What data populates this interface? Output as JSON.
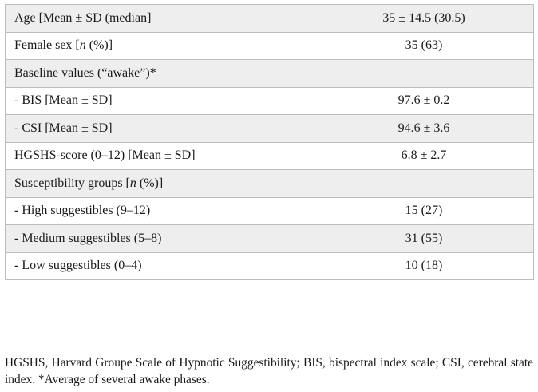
{
  "rows": [
    {
      "label": "Age [Mean ± SD (median]",
      "value": "35 ± 14.5 (30.5)"
    },
    {
      "label_pre": "Female sex [",
      "label_italic": "n",
      "label_post": " (%)]",
      "value": "35 (63)"
    },
    {
      "label": "Baseline values (“awake”)*",
      "value": ""
    },
    {
      "label": "-  BIS [Mean ± SD]",
      "value": "97.6 ± 0.2"
    },
    {
      "label": "-  CSI [Mean ± SD]",
      "value": "94.6 ± 3.6"
    },
    {
      "label": "HGSHS-score (0–12) [Mean ± SD]",
      "value": "6.8 ± 2.7"
    },
    {
      "label_pre": "Susceptibility groups [",
      "label_italic": "n",
      "label_post": " (%)]",
      "value": ""
    },
    {
      "label": "-  High suggestibles (9–12)",
      "value": "15 (27)"
    },
    {
      "label": "-  Medium suggestibles (5–8)",
      "value": "31 (55)"
    },
    {
      "label": "-  Low suggestibles (0–4)",
      "value": "10 (18)"
    }
  ],
  "footnote": "HGSHS, Harvard Groupe Scale of Hypnotic Suggestibility; BIS, bispectral index scale; CSI, cerebral state index. *Average of several awake phases.",
  "colors": {
    "shaded_row": "#eeeeee",
    "border": "#bdbdbd"
  }
}
